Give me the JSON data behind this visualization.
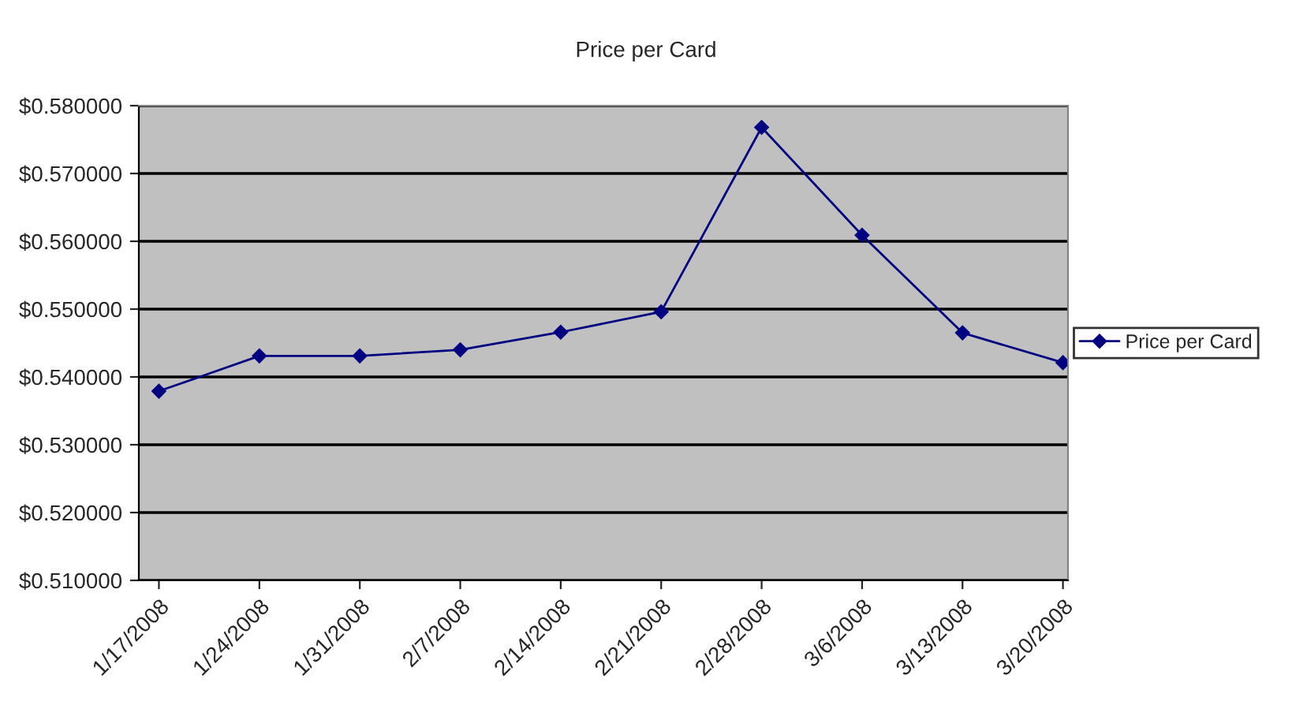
{
  "chart_data": {
    "type": "line",
    "title": "Price per Card",
    "categories": [
      "1/17/2008",
      "1/24/2008",
      "1/31/2008",
      "2/7/2008",
      "2/14/2008",
      "2/21/2008",
      "2/28/2008",
      "3/6/2008",
      "3/13/2008",
      "3/20/2008"
    ],
    "series": [
      {
        "name": "Price per Card",
        "color": "#000080",
        "values": [
          0.5379,
          0.5431,
          0.5431,
          0.544,
          0.5466,
          0.5496,
          0.5768,
          0.5609,
          0.5465,
          0.5421
        ]
      }
    ],
    "ylim": [
      0.51,
      0.58
    ],
    "yticks": [
      {
        "value": 0.51,
        "label": "$0.510000"
      },
      {
        "value": 0.52,
        "label": "$0.520000"
      },
      {
        "value": 0.53,
        "label": "$0.530000"
      },
      {
        "value": 0.54,
        "label": "$0.540000"
      },
      {
        "value": 0.55,
        "label": "$0.550000"
      },
      {
        "value": 0.56,
        "label": "$0.560000"
      },
      {
        "value": 0.57,
        "label": "$0.570000"
      },
      {
        "value": 0.58,
        "label": "$0.580000"
      }
    ],
    "grid": "y",
    "legend": "right",
    "marker": "diamond",
    "line_style": "solid"
  }
}
